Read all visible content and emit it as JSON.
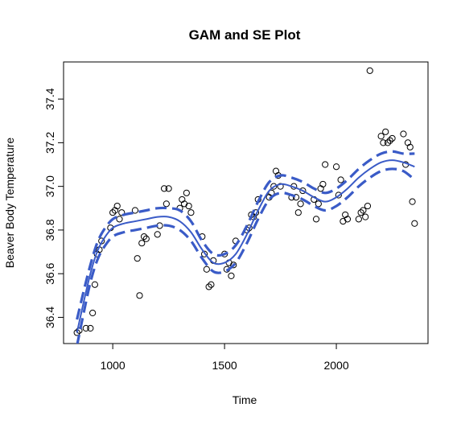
{
  "chart_data": {
    "type": "scatter",
    "title": "GAM and SE Plot",
    "xlabel": "Time",
    "ylabel": "Beaver Body Temperature",
    "xlim": [
      780,
      2410
    ],
    "ylim": [
      36.28,
      37.57
    ],
    "x_ticks": [
      1000,
      1500,
      2000
    ],
    "x_tick_labels": [
      "1000",
      "1500",
      "2000"
    ],
    "y_ticks": [
      36.4,
      36.6,
      36.8,
      37.0,
      37.2,
      37.4
    ],
    "y_tick_labels": [
      "36.4",
      "36.6",
      "36.8",
      "37.0",
      "37.2",
      "37.4"
    ],
    "grid": false,
    "colors": {
      "points": "#000000",
      "fit": "#3a5bc7",
      "se": "#3a5bc7"
    },
    "points": {
      "x": [
        840,
        850,
        880,
        900,
        910,
        920,
        930,
        940,
        950,
        990,
        1000,
        1010,
        1020,
        1030,
        1040,
        1100,
        1110,
        1120,
        1130,
        1140,
        1150,
        1200,
        1210,
        1230,
        1240,
        1250,
        1300,
        1310,
        1320,
        1330,
        1340,
        1350,
        1400,
        1410,
        1420,
        1430,
        1440,
        1450,
        1500,
        1510,
        1520,
        1530,
        1540,
        1550,
        1600,
        1610,
        1620,
        1630,
        1640,
        1650,
        1700,
        1710,
        1720,
        1730,
        1740,
        1750,
        1800,
        1810,
        1820,
        1830,
        1840,
        1850,
        1900,
        1910,
        1920,
        1930,
        1940,
        1950,
        2000,
        2010,
        2020,
        2030,
        2040,
        2050,
        2100,
        2110,
        2120,
        2130,
        2140,
        2150,
        2200,
        2210,
        2220,
        2230,
        2240,
        2250,
        2300,
        2310,
        2320,
        2330,
        2340,
        2350
      ],
      "y": [
        36.33,
        36.34,
        36.35,
        36.35,
        36.42,
        36.55,
        36.69,
        36.71,
        36.75,
        36.81,
        36.88,
        36.89,
        36.91,
        36.85,
        36.88,
        36.89,
        36.67,
        36.5,
        36.74,
        36.77,
        36.76,
        36.78,
        36.82,
        36.99,
        36.92,
        36.99,
        36.9,
        36.94,
        36.92,
        36.97,
        36.91,
        36.88,
        36.77,
        36.69,
        36.62,
        36.54,
        36.55,
        36.66,
        36.69,
        36.62,
        36.65,
        36.59,
        36.64,
        36.75,
        36.8,
        36.81,
        36.87,
        36.86,
        36.88,
        36.94,
        36.95,
        36.97,
        37.0,
        37.07,
        37.05,
        37.0,
        36.95,
        37.0,
        36.95,
        36.88,
        36.92,
        36.98,
        36.94,
        36.85,
        36.92,
        36.99,
        37.01,
        37.1,
        37.09,
        36.96,
        37.03,
        36.84,
        36.87,
        36.85,
        36.85,
        36.88,
        36.89,
        36.86,
        36.91,
        37.53,
        37.23,
        37.2,
        37.25,
        37.2,
        37.21,
        37.22,
        37.24,
        37.1,
        37.2,
        37.18,
        36.93,
        36.83
      ]
    },
    "fit": {
      "x": [
        840,
        870,
        900,
        930,
        960,
        1000,
        1050,
        1100,
        1150,
        1200,
        1250,
        1300,
        1350,
        1400,
        1450,
        1500,
        1550,
        1600,
        1650,
        1700,
        1750,
        1800,
        1850,
        1900,
        1950,
        2000,
        2050,
        2100,
        2150,
        2200,
        2250,
        2300,
        2350
      ],
      "y": [
        36.33,
        36.47,
        36.6,
        36.7,
        36.76,
        36.81,
        36.83,
        36.84,
        36.85,
        36.86,
        36.86,
        36.84,
        36.79,
        36.71,
        36.65,
        36.65,
        36.69,
        36.78,
        36.89,
        36.98,
        37.01,
        37.0,
        36.98,
        36.95,
        36.93,
        36.95,
        36.99,
        37.04,
        37.08,
        37.11,
        37.12,
        37.11,
        37.09
      ]
    },
    "se_upper": {
      "x": [
        840,
        870,
        900,
        930,
        960,
        1000,
        1050,
        1100,
        1150,
        1200,
        1250,
        1300,
        1350,
        1400,
        1450,
        1500,
        1550,
        1600,
        1650,
        1700,
        1750,
        1800,
        1850,
        1900,
        1950,
        2000,
        2050,
        2100,
        2150,
        2200,
        2250,
        2300,
        2350
      ],
      "y": [
        36.39,
        36.52,
        36.64,
        36.74,
        36.8,
        36.85,
        36.87,
        36.88,
        36.89,
        36.9,
        36.9,
        36.89,
        36.84,
        36.75,
        36.69,
        36.69,
        36.73,
        36.82,
        36.93,
        37.02,
        37.05,
        37.04,
        37.02,
        36.99,
        36.97,
        36.99,
        37.03,
        37.08,
        37.12,
        37.15,
        37.16,
        37.15,
        37.15
      ]
    },
    "se_lower": {
      "x": [
        840,
        870,
        900,
        930,
        960,
        1000,
        1050,
        1100,
        1150,
        1200,
        1250,
        1300,
        1350,
        1400,
        1450,
        1500,
        1550,
        1600,
        1650,
        1700,
        1750,
        1800,
        1850,
        1900,
        1950,
        2000,
        2050,
        2100,
        2150,
        2200,
        2250,
        2300,
        2350
      ],
      "y": [
        36.27,
        36.42,
        36.56,
        36.66,
        36.72,
        36.77,
        36.79,
        36.8,
        36.81,
        36.82,
        36.82,
        36.8,
        36.75,
        36.67,
        36.61,
        36.61,
        36.65,
        36.74,
        36.85,
        36.94,
        36.97,
        36.96,
        36.94,
        36.91,
        36.89,
        36.91,
        36.95,
        37.0,
        37.04,
        37.07,
        37.08,
        37.07,
        37.03
      ]
    }
  }
}
